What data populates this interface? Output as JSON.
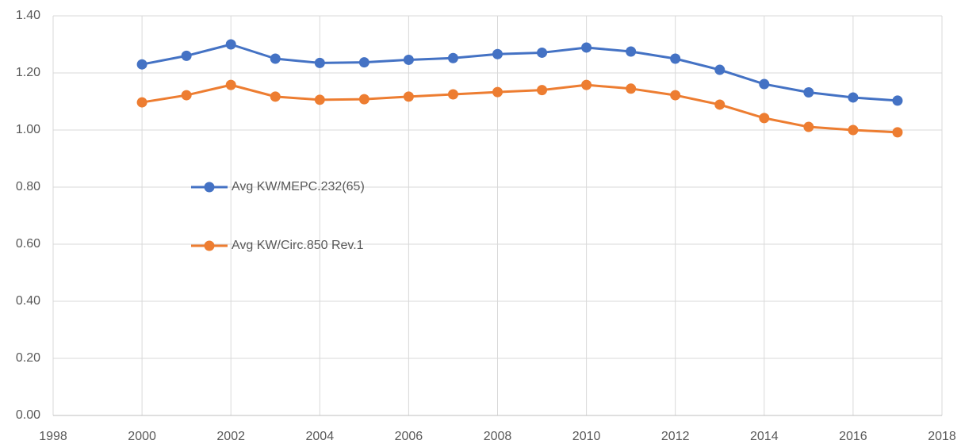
{
  "chart_data": {
    "type": "line",
    "x": [
      2000,
      2001,
      2002,
      2003,
      2004,
      2005,
      2006,
      2007,
      2008,
      2009,
      2010,
      2011,
      2012,
      2013,
      2014,
      2015,
      2016,
      2017
    ],
    "series": [
      {
        "name": "Avg KW/MEPC.232(65)",
        "color": "#4472c4",
        "values": [
          1.23,
          1.26,
          1.3,
          1.25,
          1.235,
          1.237,
          1.246,
          1.252,
          1.266,
          1.271,
          1.289,
          1.275,
          1.25,
          1.211,
          1.161,
          1.132,
          1.114,
          1.103
        ]
      },
      {
        "name": "Avg KW/Circ.850 Rev.1",
        "color": "#ed7d31",
        "values": [
          1.097,
          1.122,
          1.158,
          1.117,
          1.106,
          1.108,
          1.117,
          1.125,
          1.133,
          1.14,
          1.158,
          1.145,
          1.122,
          1.089,
          1.042,
          1.011,
          1.0,
          0.992
        ]
      }
    ],
    "xlim": [
      1998,
      2018
    ],
    "xticks": [
      1998,
      2000,
      2002,
      2004,
      2006,
      2008,
      2010,
      2012,
      2014,
      2016,
      2018
    ],
    "ylim": [
      0,
      1.4
    ],
    "yticks": [
      {
        "value": 0,
        "label": "0.00"
      },
      {
        "value": 0.2,
        "label": "0.20"
      },
      {
        "value": 0.4,
        "label": "0.40"
      },
      {
        "value": 0.6,
        "label": "0.60"
      },
      {
        "value": 0.8,
        "label": "0.80"
      },
      {
        "value": 1.0,
        "label": "1.00"
      },
      {
        "value": 1.2,
        "label": "1.20"
      },
      {
        "value": 1.4,
        "label": "1.40"
      }
    ],
    "grid": true,
    "legend": "left"
  }
}
